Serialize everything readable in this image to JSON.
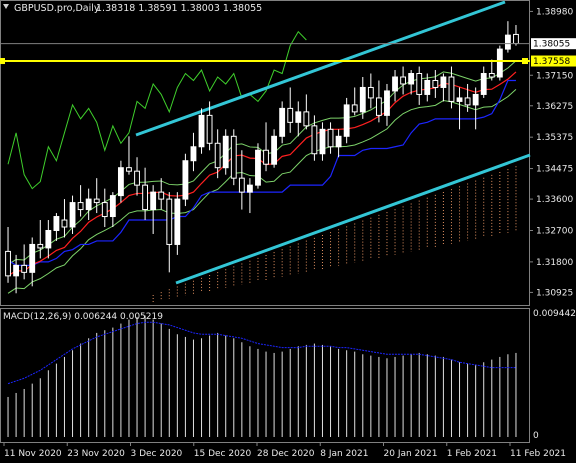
{
  "chart_data": [
    {
      "type": "candlestick",
      "header": {
        "symbol": "GBPUSD.pro,Daily",
        "values": "1.38318 1.38591 1.38003 1.38055"
      },
      "price_axis": {
        "ticks": [
          "1.38980",
          "1.37150",
          "1.36275",
          "1.35375",
          "1.34475",
          "1.33600",
          "1.32700",
          "1.31800",
          "1.30925"
        ],
        "ylim": [
          1.3065,
          1.3925
        ]
      },
      "price_labels": {
        "current": "1.38055",
        "horizontal_line": "1.37558"
      },
      "time_axis": {
        "ticks": [
          "11 Nov 2020",
          "23 Nov 2020",
          "3 Dec 2020",
          "15 Dec 2020",
          "28 Dec 2020",
          "8 Jan 2021",
          "20 Jan 2021",
          "1 Feb 2021",
          "11 Feb 2021"
        ]
      },
      "colors": {
        "candle": "#ffffff",
        "channel": "#33c6d6",
        "level": "#ffff00",
        "ma": "#ff2020",
        "kijun": "#1c25ff",
        "chikou": "#3fcf2c",
        "envelope": "#7dd36a",
        "cloud": "#e09060"
      },
      "candles": [
        [
          1.321,
          1.328,
          1.312,
          1.314
        ],
        [
          1.314,
          1.32,
          1.309,
          1.317
        ],
        [
          1.317,
          1.323,
          1.313,
          1.315
        ],
        [
          1.315,
          1.325,
          1.311,
          1.323
        ],
        [
          1.323,
          1.33,
          1.319,
          1.322
        ],
        [
          1.322,
          1.33,
          1.319,
          1.327
        ],
        [
          1.327,
          1.332,
          1.324,
          1.331
        ],
        [
          1.33,
          1.336,
          1.325,
          1.328
        ],
        [
          1.328,
          1.337,
          1.326,
          1.335
        ],
        [
          1.335,
          1.34,
          1.331,
          1.333
        ],
        [
          1.333,
          1.339,
          1.33,
          1.336
        ],
        [
          1.336,
          1.342,
          1.332,
          1.335
        ],
        [
          1.335,
          1.339,
          1.328,
          1.331
        ],
        [
          1.331,
          1.338,
          1.328,
          1.337
        ],
        [
          1.337,
          1.347,
          1.335,
          1.345
        ],
        [
          1.345,
          1.354,
          1.343,
          1.344
        ],
        [
          1.344,
          1.348,
          1.337,
          1.34
        ],
        [
          1.34,
          1.345,
          1.33,
          1.333
        ],
        [
          1.333,
          1.34,
          1.326,
          1.338
        ],
        [
          1.338,
          1.342,
          1.333,
          1.336
        ],
        [
          1.336,
          1.338,
          1.315,
          1.323
        ],
        [
          1.323,
          1.338,
          1.32,
          1.336
        ],
        [
          1.336,
          1.349,
          1.334,
          1.347
        ],
        [
          1.347,
          1.355,
          1.344,
          1.351
        ],
        [
          1.351,
          1.362,
          1.349,
          1.36
        ],
        [
          1.36,
          1.364,
          1.35,
          1.352
        ],
        [
          1.352,
          1.356,
          1.342,
          1.345
        ],
        [
          1.345,
          1.356,
          1.343,
          1.354
        ],
        [
          1.354,
          1.356,
          1.34,
          1.342
        ],
        [
          1.342,
          1.35,
          1.333,
          1.338
        ],
        [
          1.338,
          1.342,
          1.332,
          1.34
        ],
        [
          1.34,
          1.352,
          1.339,
          1.35
        ],
        [
          1.35,
          1.358,
          1.344,
          1.346
        ],
        [
          1.346,
          1.356,
          1.345,
          1.354
        ],
        [
          1.354,
          1.364,
          1.352,
          1.362
        ],
        [
          1.362,
          1.368,
          1.355,
          1.358
        ],
        [
          1.358,
          1.364,
          1.354,
          1.361
        ],
        [
          1.361,
          1.366,
          1.356,
          1.357
        ],
        [
          1.357,
          1.36,
          1.347,
          1.349
        ],
        [
          1.349,
          1.358,
          1.347,
          1.356
        ],
        [
          1.356,
          1.358,
          1.349,
          1.351
        ],
        [
          1.351,
          1.356,
          1.348,
          1.354
        ],
        [
          1.354,
          1.365,
          1.352,
          1.363
        ],
        [
          1.363,
          1.368,
          1.36,
          1.361
        ],
        [
          1.361,
          1.371,
          1.359,
          1.368
        ],
        [
          1.368,
          1.372,
          1.362,
          1.365
        ],
        [
          1.365,
          1.37,
          1.358,
          1.36
        ],
        [
          1.36,
          1.369,
          1.357,
          1.367
        ],
        [
          1.367,
          1.373,
          1.364,
          1.371
        ],
        [
          1.371,
          1.374,
          1.366,
          1.369
        ],
        [
          1.369,
          1.373,
          1.366,
          1.372
        ],
        [
          1.372,
          1.374,
          1.363,
          1.366
        ],
        [
          1.366,
          1.372,
          1.364,
          1.37
        ],
        [
          1.37,
          1.373,
          1.365,
          1.368
        ],
        [
          1.368,
          1.372,
          1.364,
          1.371
        ],
        [
          1.371,
          1.374,
          1.362,
          1.364
        ],
        [
          1.364,
          1.368,
          1.356,
          1.365
        ],
        [
          1.365,
          1.369,
          1.361,
          1.363
        ],
        [
          1.363,
          1.368,
          1.356,
          1.366
        ],
        [
          1.366,
          1.374,
          1.365,
          1.372
        ],
        [
          1.372,
          1.376,
          1.37,
          1.371
        ],
        [
          1.371,
          1.38,
          1.37,
          1.379
        ],
        [
          1.379,
          1.387,
          1.378,
          1.383
        ],
        [
          1.3832,
          1.3859,
          1.38,
          1.3806
        ]
      ],
      "macd": {
        "label": "MACD(12,26,9) 0.006244 0.005219",
        "axis_top": "0.009442",
        "axis_bottom": "0",
        "range": [
          0,
          0.009442
        ],
        "histogram": [
          0.003,
          0.0033,
          0.0036,
          0.004,
          0.0044,
          0.005,
          0.0055,
          0.006,
          0.0065,
          0.007,
          0.0074,
          0.0078,
          0.008,
          0.0082,
          0.0085,
          0.0088,
          0.009,
          0.0091,
          0.0088,
          0.0085,
          0.0081,
          0.0077,
          0.0075,
          0.0073,
          0.0074,
          0.0076,
          0.0078,
          0.0076,
          0.0074,
          0.0071,
          0.0068,
          0.0066,
          0.0064,
          0.0063,
          0.0064,
          0.0066,
          0.0068,
          0.0069,
          0.007,
          0.0069,
          0.0068,
          0.0066,
          0.0065,
          0.0064,
          0.0062,
          0.0061,
          0.006,
          0.0059,
          0.006,
          0.0061,
          0.0062,
          0.0063,
          0.0062,
          0.0061,
          0.006,
          0.0058,
          0.0056,
          0.0055,
          0.0054,
          0.0056,
          0.0058,
          0.006,
          0.0062,
          0.0063
        ],
        "signal": [
          0.004,
          0.0042,
          0.0044,
          0.0047,
          0.005,
          0.0054,
          0.0058,
          0.0062,
          0.0066,
          0.0069,
          0.0072,
          0.0075,
          0.0077,
          0.0079,
          0.0081,
          0.0083,
          0.0085,
          0.0086,
          0.0086,
          0.0085,
          0.0084,
          0.0082,
          0.008,
          0.0078,
          0.0077,
          0.0077,
          0.0077,
          0.0076,
          0.0075,
          0.0074,
          0.0072,
          0.007,
          0.0069,
          0.0068,
          0.0067,
          0.0067,
          0.0067,
          0.0068,
          0.0068,
          0.0068,
          0.0068,
          0.0067,
          0.0067,
          0.0066,
          0.0065,
          0.0064,
          0.0063,
          0.0062,
          0.0062,
          0.0062,
          0.0062,
          0.0062,
          0.0061,
          0.006,
          0.0059,
          0.0058,
          0.0056,
          0.0055,
          0.0054,
          0.0053,
          0.0052,
          0.0052,
          0.0052,
          0.0052
        ]
      }
    }
  ]
}
